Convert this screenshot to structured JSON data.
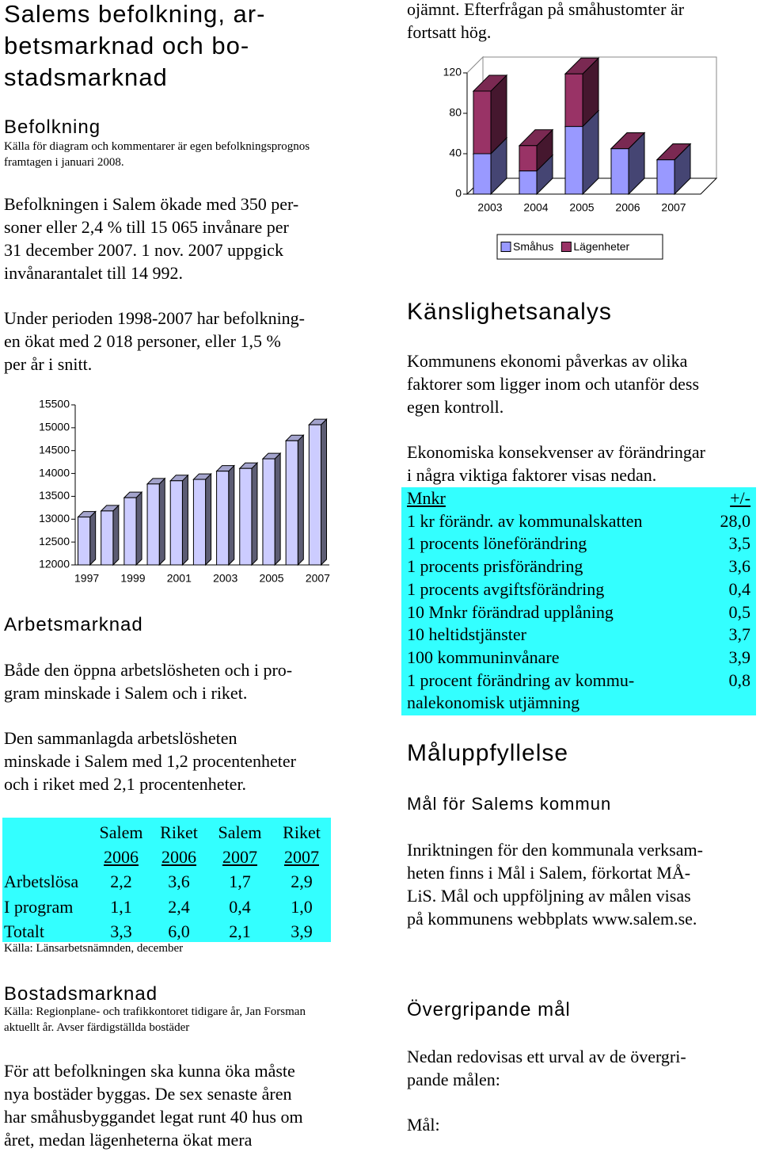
{
  "title": [
    "Salems befolkning, ar-",
    "betsmarknad och bo-",
    "stadsmarknad"
  ],
  "population": {
    "heading": "Befolkning",
    "source": [
      "Källa för diagram och kommentarer är egen befolkningsprognos",
      "framtagen i januari 2008."
    ],
    "paragraphs": [
      [
        "Befolkningen i Salem ökade med 350 per-",
        "soner eller 2,4 % till 15 065 invånare per",
        "31 december 2007. 1 nov. 2007 uppgick",
        "invånarantalet till 14 992."
      ],
      [
        "Under perioden 1998-2007 har befolkning-",
        "en ökat med 2 018 personer, eller 1,5 %",
        "per år i snitt."
      ]
    ]
  },
  "labour": {
    "heading": "Arbetsmarknad",
    "paragraphs": [
      [
        "Både den öppna arbetslösheten och i pro-",
        "gram minskade i Salem och  i riket."
      ],
      [
        "Den sammanlagda arbetslösheten",
        "minskade i Salem med 1,2 procentenheter",
        "och i riket med 2,1 procentenheter."
      ]
    ],
    "table": {
      "header_top": [
        "Salem",
        "Riket",
        "Salem",
        "Riket"
      ],
      "header_year": [
        "2006",
        "2006",
        "2007",
        "2007"
      ],
      "rows": [
        [
          "Arbetslösa",
          "2,2",
          "3,6",
          "1,7",
          "2,9"
        ],
        [
          "I program",
          "1,1",
          "2,4",
          "0,4",
          "1,0"
        ],
        [
          "Totalt",
          "3,3",
          "6,0",
          "2,1",
          "3,9"
        ]
      ]
    },
    "source": "Källa: Länsarbetsnämnden, december"
  },
  "housing": {
    "heading": "Bostadsmarknad",
    "source": [
      "Källa: Regionplane- och trafikkontoret tidigare år, Jan Forsman",
      "aktuellt år. Avser färdigställda bostäder"
    ],
    "paragraph": [
      "För att befolkningen ska kunna öka måste",
      "nya bostäder byggas. De sex senaste åren",
      "har småhusbyggandet legat runt 40 hus om",
      "året, medan lägenheterna ökat mera"
    ],
    "continuation": [
      "ojämnt. Efterfrågan på småhustomter är",
      "fortsatt hög."
    ]
  },
  "sensitivity": {
    "heading": "Känslighetsanalys",
    "paragraphs": [
      [
        "Kommunens ekonomi påverkas av olika",
        "faktorer som ligger inom och utanför dess",
        "egen kontroll."
      ],
      [
        "Ekonomiska konsekvenser av förändringar",
        "i några viktiga faktorer visas nedan."
      ]
    ],
    "table": {
      "header": [
        "Mnkr",
        "+/-"
      ],
      "rows": [
        {
          "label": [
            "1 kr förändr. av kommunalskatten"
          ],
          "value": "28,0"
        },
        {
          "label": [
            "1 procents löneförändring"
          ],
          "value": "3,5"
        },
        {
          "label": [
            "1 procents prisförändring"
          ],
          "value": "3,6"
        },
        {
          "label": [
            "1 procents avgiftsförändring"
          ],
          "value": "0,4"
        },
        {
          "label": [
            "10 Mnkr förändrad upplåning"
          ],
          "value": "0,5"
        },
        {
          "label": [
            "10 heltidstjänster"
          ],
          "value": "3,7"
        },
        {
          "label": [
            "100 kommuninvånare"
          ],
          "value": "3,9"
        },
        {
          "label": [
            "1 procent förändring av kommu-",
            "nalekonomisk utjämning"
          ],
          "value": "0,8"
        }
      ]
    }
  },
  "goals": {
    "heading": "Måluppfyllelse",
    "subheading": "Mål för Salems kommun",
    "paragraph": [
      "Inriktningen för den kommunala verksam-",
      "heten finns i Mål i Salem, förkortat MÅ-",
      "LiS. Mål och uppföljning av målen visas",
      "på kommunens webbplats www.salem.se."
    ]
  },
  "overall_goals": {
    "heading": "Övergripande mål",
    "paragraph": [
      "Nedan redovisas ett urval av de övergri-",
      "pande målen:"
    ],
    "label": "Mål:"
  },
  "chart_data": [
    {
      "type": "bar",
      "categories": [
        "1997",
        null,
        "1999",
        null,
        "2001",
        null,
        "2003",
        null,
        "2005",
        null,
        "2007"
      ],
      "values": [
        13047,
        13180,
        13470,
        13770,
        13840,
        13870,
        14050,
        14110,
        14320,
        14715,
        15065
      ],
      "color": "#ccccff",
      "ylim": [
        12000,
        15500
      ],
      "yticks": [
        12000,
        12500,
        13000,
        13500,
        14000,
        14500,
        15000,
        15500
      ]
    },
    {
      "type": "bar",
      "stacked": true,
      "categories": [
        "2003",
        "2004",
        "2005",
        "2006",
        "2007"
      ],
      "series": [
        {
          "name": "Småhus",
          "color": "#9999ff",
          "values": [
            40,
            23,
            67,
            45,
            34
          ]
        },
        {
          "name": "Lägenheter",
          "color": "#993366",
          "values": [
            62,
            25,
            52,
            0,
            0
          ]
        }
      ],
      "ylim": [
        0,
        120
      ],
      "yticks": [
        0,
        40,
        80,
        120
      ],
      "legend": "bottom"
    }
  ]
}
